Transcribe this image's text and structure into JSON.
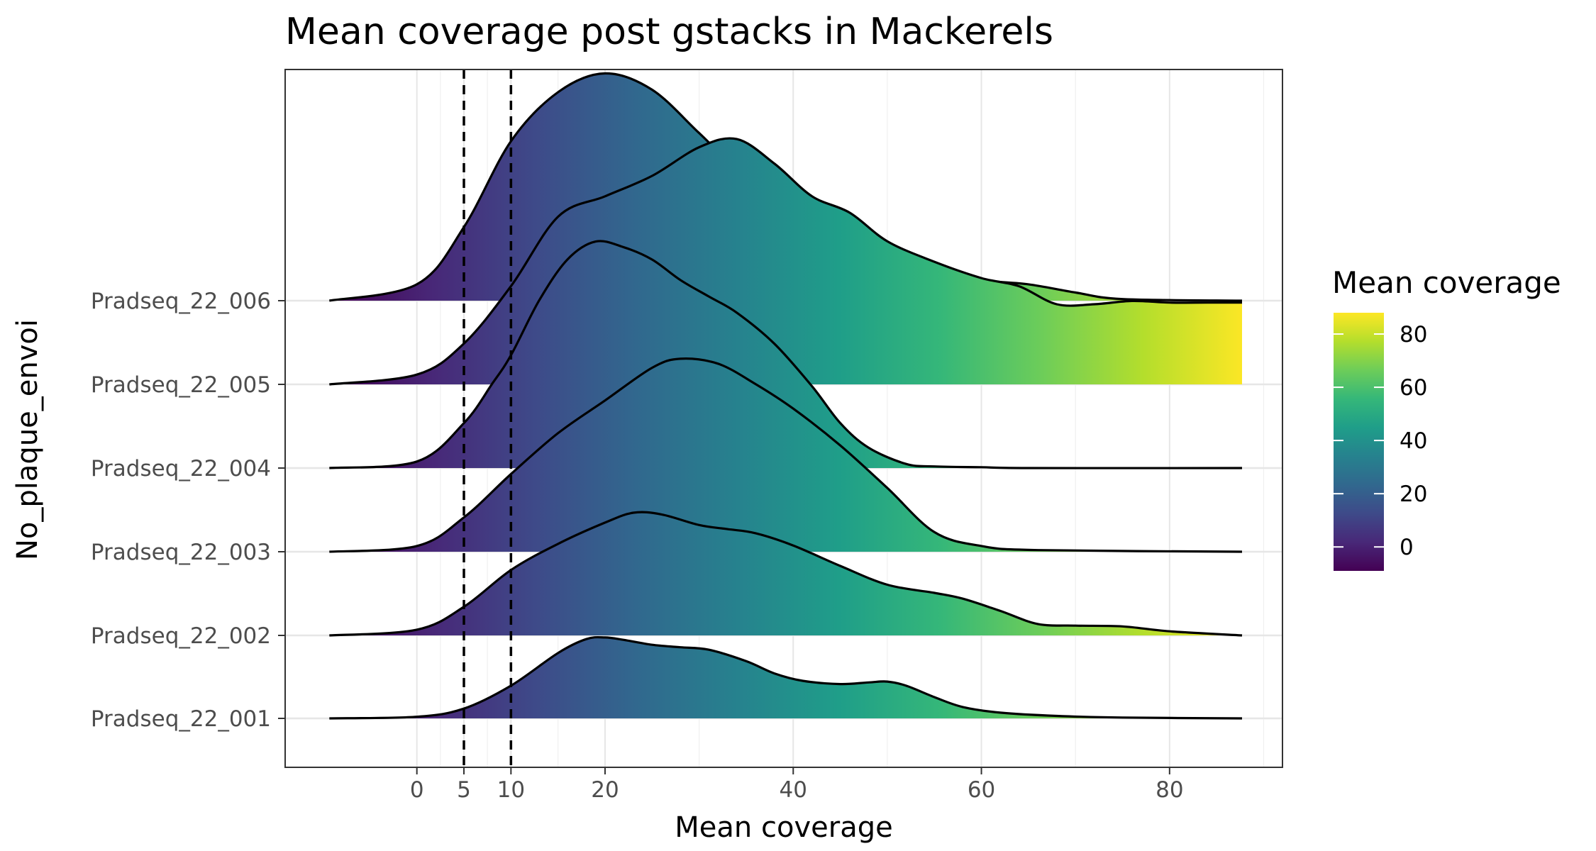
{
  "chart_data": {
    "type": "ridgeline",
    "title": "Mean coverage post gstacks in Mackerels",
    "xlabel": "Mean coverage",
    "ylabel": "No_plaque_envoi",
    "x_ticks": [
      0,
      5,
      10,
      20,
      40,
      60,
      80
    ],
    "x_range": [
      -14,
      92
    ],
    "density_support": [
      -9.3,
      87.7
    ],
    "reference_lines": [
      5,
      10
    ],
    "grid": true,
    "legend": {
      "title": "Mean coverage",
      "position": "right",
      "ticks": [
        0,
        20,
        40,
        60,
        80
      ],
      "range": [
        -9,
        88
      ]
    },
    "colormap": [
      "#440154",
      "#482878",
      "#3e4a89",
      "#31688e",
      "#26828e",
      "#1f9e89",
      "#35b779",
      "#6dcd59",
      "#b4de2c",
      "#fde725"
    ],
    "series": [
      {
        "name": "Pradseq_22_001",
        "points": [
          [
            -9.3,
            0
          ],
          [
            0,
            0.02
          ],
          [
            5,
            0.12
          ],
          [
            10,
            0.4
          ],
          [
            15,
            0.8
          ],
          [
            18,
            0.97
          ],
          [
            20,
            0.99
          ],
          [
            22,
            0.96
          ],
          [
            25,
            0.9
          ],
          [
            28,
            0.87
          ],
          [
            31,
            0.84
          ],
          [
            35,
            0.7
          ],
          [
            38,
            0.55
          ],
          [
            41,
            0.46
          ],
          [
            45,
            0.42
          ],
          [
            48,
            0.44
          ],
          [
            50,
            0.45
          ],
          [
            52,
            0.4
          ],
          [
            55,
            0.26
          ],
          [
            58,
            0.14
          ],
          [
            62,
            0.07
          ],
          [
            68,
            0.03
          ],
          [
            75,
            0.01
          ],
          [
            87.7,
            0
          ]
        ]
      },
      {
        "name": "Pradseq_22_002",
        "points": [
          [
            -9.3,
            0
          ],
          [
            0,
            0.07
          ],
          [
            5,
            0.35
          ],
          [
            10,
            0.8
          ],
          [
            15,
            1.12
          ],
          [
            20,
            1.38
          ],
          [
            23,
            1.5
          ],
          [
            26,
            1.48
          ],
          [
            30,
            1.35
          ],
          [
            33,
            1.3
          ],
          [
            36,
            1.25
          ],
          [
            40,
            1.1
          ],
          [
            45,
            0.85
          ],
          [
            50,
            0.62
          ],
          [
            55,
            0.52
          ],
          [
            58,
            0.45
          ],
          [
            62,
            0.3
          ],
          [
            66,
            0.14
          ],
          [
            70,
            0.12
          ],
          [
            75,
            0.11
          ],
          [
            80,
            0.05
          ],
          [
            87.7,
            0
          ]
        ]
      },
      {
        "name": "Pradseq_22_003",
        "points": [
          [
            -9.3,
            0
          ],
          [
            0,
            0.07
          ],
          [
            5,
            0.42
          ],
          [
            10,
            0.95
          ],
          [
            15,
            1.45
          ],
          [
            20,
            1.85
          ],
          [
            25,
            2.25
          ],
          [
            28,
            2.36
          ],
          [
            32,
            2.3
          ],
          [
            36,
            2.05
          ],
          [
            40,
            1.75
          ],
          [
            45,
            1.3
          ],
          [
            50,
            0.78
          ],
          [
            55,
            0.24
          ],
          [
            60,
            0.07
          ],
          [
            66,
            0.02
          ],
          [
            87.7,
            0
          ]
        ]
      },
      {
        "name": "Pradseq_22_004",
        "points": [
          [
            -9.3,
            0
          ],
          [
            0,
            0.08
          ],
          [
            5,
            0.55
          ],
          [
            8,
            1.03
          ],
          [
            10,
            1.38
          ],
          [
            13,
            2.05
          ],
          [
            16,
            2.55
          ],
          [
            19,
            2.77
          ],
          [
            22,
            2.7
          ],
          [
            25,
            2.55
          ],
          [
            28,
            2.3
          ],
          [
            31,
            2.1
          ],
          [
            34,
            1.9
          ],
          [
            38,
            1.52
          ],
          [
            42,
            1.0
          ],
          [
            45,
            0.55
          ],
          [
            48,
            0.25
          ],
          [
            52,
            0.05
          ],
          [
            55,
            0.02
          ],
          [
            60,
            0.01
          ],
          [
            65,
            0
          ],
          [
            87.7,
            0
          ]
        ]
      },
      {
        "name": "Pradseq_22_005",
        "points": [
          [
            -9.3,
            0
          ],
          [
            0,
            0.12
          ],
          [
            5,
            0.5
          ],
          [
            10,
            1.2
          ],
          [
            15,
            2.05
          ],
          [
            20,
            2.3
          ],
          [
            25,
            2.55
          ],
          [
            30,
            2.9
          ],
          [
            34,
            3.0
          ],
          [
            38,
            2.7
          ],
          [
            42,
            2.3
          ],
          [
            46,
            2.1
          ],
          [
            50,
            1.75
          ],
          [
            55,
            1.5
          ],
          [
            60,
            1.3
          ],
          [
            64,
            1.2
          ],
          [
            68,
            0.98
          ],
          [
            72,
            0.98
          ],
          [
            76,
            1.02
          ],
          [
            80,
            1.0
          ],
          [
            84,
            1.0
          ],
          [
            87.7,
            1.0
          ]
        ]
      },
      {
        "name": "Pradseq_22_006",
        "points": [
          [
            -9.3,
            0
          ],
          [
            0,
            0.2
          ],
          [
            5,
            0.9
          ],
          [
            10,
            1.95
          ],
          [
            15,
            2.55
          ],
          [
            20,
            2.78
          ],
          [
            25,
            2.58
          ],
          [
            30,
            2.05
          ],
          [
            35,
            1.5
          ],
          [
            40,
            1.1
          ],
          [
            45,
            0.85
          ],
          [
            50,
            0.65
          ],
          [
            55,
            0.35
          ],
          [
            60,
            0.25
          ],
          [
            65,
            0.2
          ],
          [
            70,
            0.1
          ],
          [
            75,
            0.02
          ],
          [
            87.7,
            0
          ]
        ]
      }
    ]
  }
}
